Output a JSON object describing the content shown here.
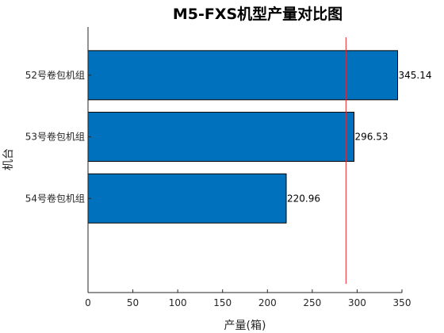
{
  "chart_data": {
    "type": "bar",
    "orientation": "horizontal",
    "title": "M5-FXS机型产量对比图",
    "xlabel": "产量(箱)",
    "ylabel": "机台",
    "categories": [
      "52号卷包机组",
      "53号卷包机组",
      "54号卷包机组"
    ],
    "values": [
      345.14,
      296.53,
      220.96
    ],
    "data_labels": [
      "345.14",
      "296.53",
      "220.96"
    ],
    "xlim": [
      0,
      350
    ],
    "x_ticks": [
      0,
      50,
      100,
      150,
      200,
      250,
      300,
      350
    ],
    "x_tick_labels": [
      "0",
      "50",
      "100",
      "150",
      "200",
      "250",
      "300",
      "350"
    ],
    "reference_line": {
      "value": 287.54,
      "orientation": "vertical"
    },
    "grid": false,
    "legend": "none",
    "colors": {
      "bar_fill": "#0072BD",
      "bar_edge": "#000000",
      "reference_line": "#E8222E",
      "axis": "#262626"
    }
  }
}
